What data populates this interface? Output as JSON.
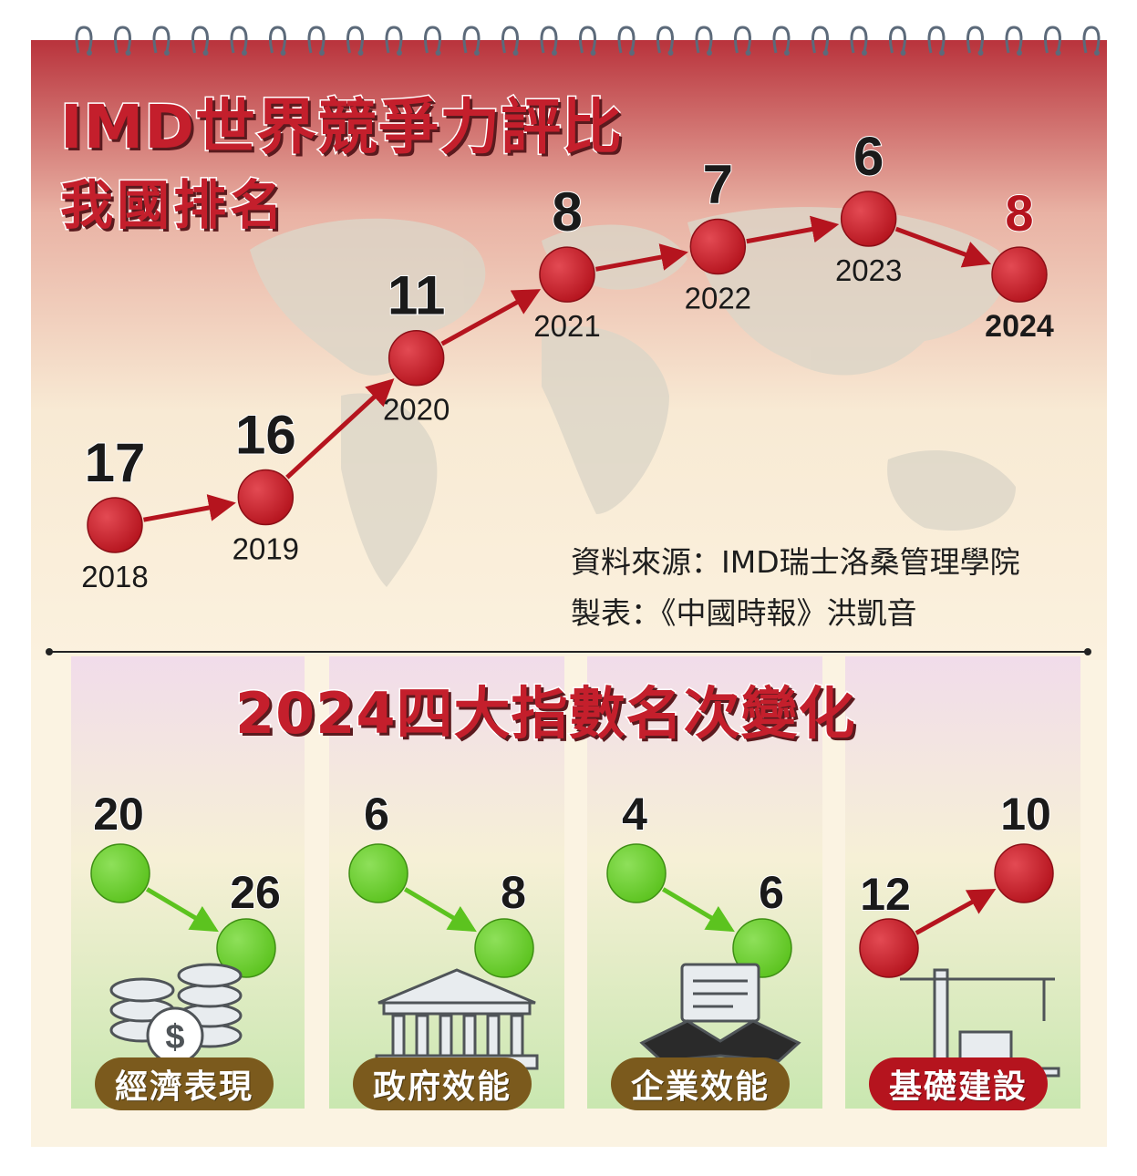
{
  "title": {
    "line1": "IMD世界競爭力評比",
    "line2": "我國排名"
  },
  "chart_data": [
    {
      "type": "line",
      "x": [
        "2018",
        "2019",
        "2020",
        "2021",
        "2022",
        "2023",
        "2024"
      ],
      "ranks": [
        "17",
        "16",
        "11",
        "8",
        "7",
        "6",
        "8"
      ],
      "series": [
        {
          "values": [
            17,
            16,
            11,
            8,
            7,
            6,
            8
          ]
        }
      ],
      "highlight_year": "2024",
      "colors": {
        "marker": "#b5141e",
        "arrow": "#b5141e",
        "highlight_rank": "#b5141e"
      }
    },
    {
      "type": "scatter",
      "title": "2024四大指數名次變化",
      "categories": [
        {
          "label": "經濟表現",
          "from": "20",
          "to": "26",
          "icon": "coins-dollar-icon",
          "trend": "down"
        },
        {
          "label": "政府效能",
          "from": "6",
          "to": "8",
          "icon": "government-building-icon",
          "trend": "down"
        },
        {
          "label": "企業效能",
          "from": "4",
          "to": "6",
          "icon": "business-handshake-icon",
          "trend": "down"
        },
        {
          "label": "基礎建設",
          "from": "12",
          "to": "10",
          "icon": "construction-crane-icon",
          "trend": "up"
        }
      ],
      "colors": {
        "down": "#5cc31f",
        "up": "#b5141e",
        "pill_default": "#7b5a1d",
        "pill_highlight": "#b5141e"
      }
    }
  ],
  "source": {
    "line1": "資料來源：IMD瑞士洛桑管理學院",
    "line2": "製表：《中國時報》洪凱音"
  }
}
